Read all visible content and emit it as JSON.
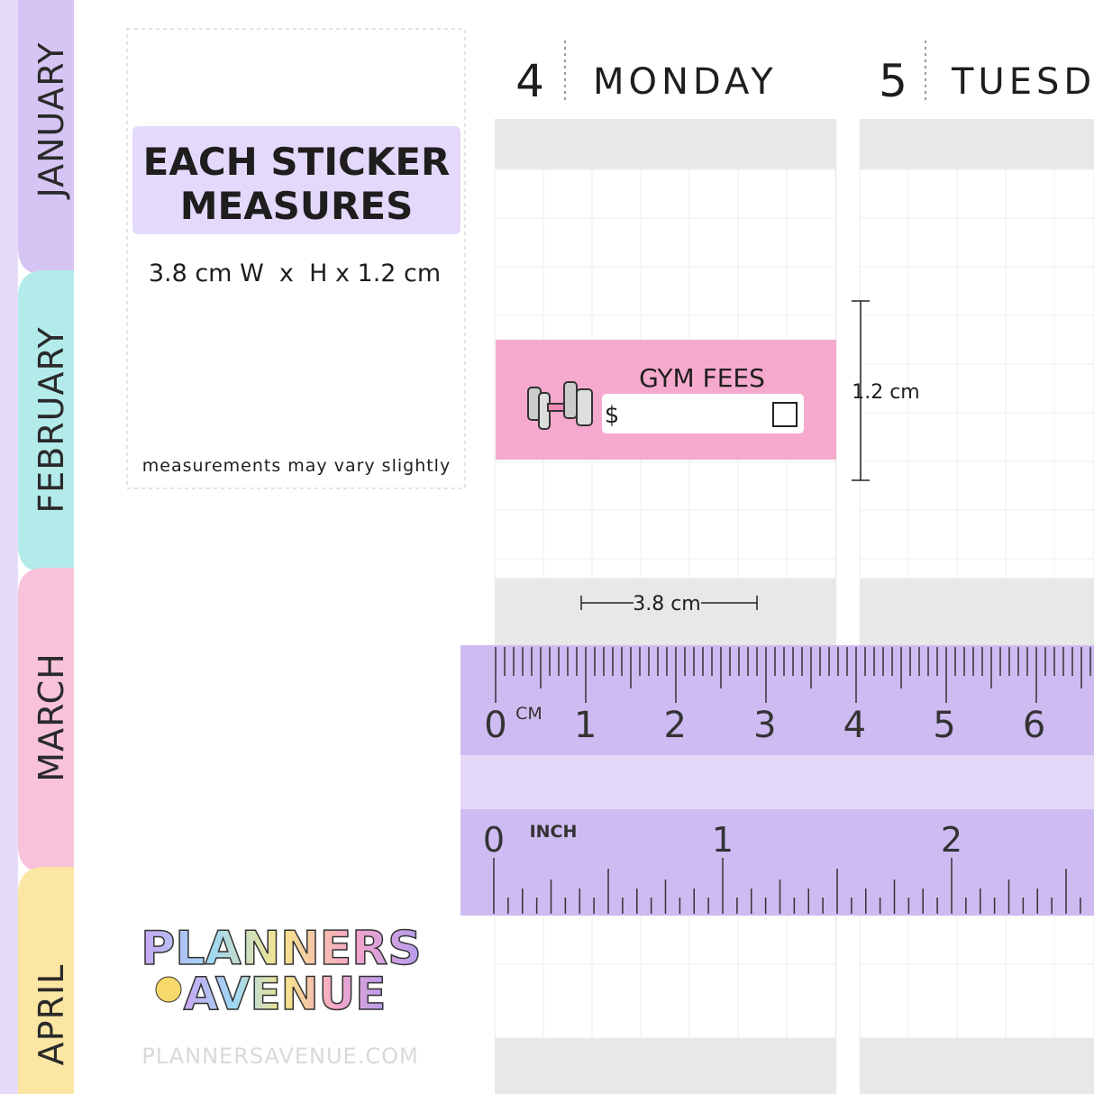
{
  "tabs": [
    "JANUARY",
    "FEBRUARY",
    "MARCH",
    "APRIL"
  ],
  "info": {
    "title_line1": "EACH STICKER",
    "title_line2": "MEASURES",
    "size": "3.8 cm W  x  H x 1.2 cm",
    "note": "measurements may vary slightly"
  },
  "days": [
    {
      "number": "4",
      "name": "MONDAY"
    },
    {
      "number": "5",
      "name": "TUESDAY"
    }
  ],
  "sticker": {
    "title": "GYM FEES",
    "currency": "$"
  },
  "dimensions": {
    "height": "1.2 cm",
    "width": "3.8 cm"
  },
  "ruler": {
    "cm_unit": "CM",
    "cm_labels": [
      "0",
      "1",
      "2",
      "3",
      "4",
      "5",
      "6"
    ],
    "inch_unit": "INCH",
    "inch_labels": [
      "0",
      "1",
      "2"
    ]
  },
  "logo": {
    "line1": "PLANNERS",
    "line2": "AVENUE",
    "website": "PLANNERSAVENUE.COM"
  }
}
